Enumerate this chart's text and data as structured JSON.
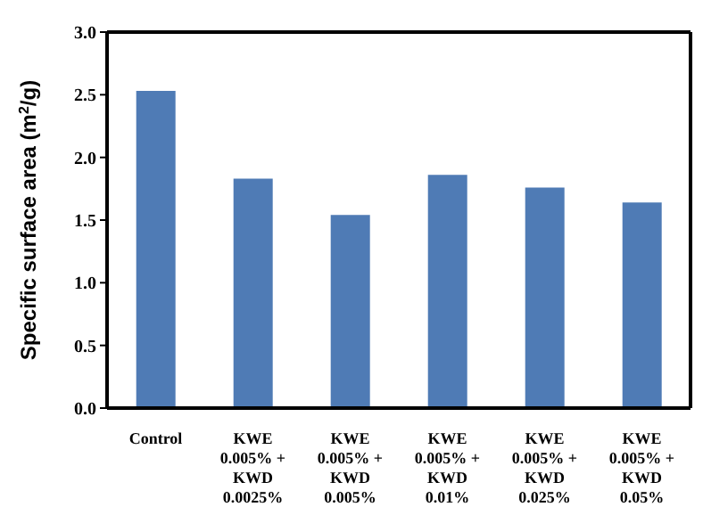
{
  "chart_data": {
    "type": "bar",
    "ylabel": "Specific surface area (m$^{2}$/g)",
    "categories": [
      "Control",
      "KWE\n0.005% +\nKWD\n0.0025%",
      "KWE\n0.005% +\nKWD\n0.005%",
      "KWE\n0.005% +\nKWD\n0.01%",
      "KWE\n0.005% +\nKWD\n0.025%",
      "KWE\n0.005% +\nKWD\n0.05%"
    ],
    "values": [
      2.53,
      1.83,
      1.54,
      1.86,
      1.76,
      1.64
    ],
    "color": "#4f7bb5",
    "ylim": [
      0,
      3
    ],
    "yticks": [
      {
        "value": 0,
        "label": "0.0"
      },
      {
        "value": 0.5,
        "label": "0.5"
      },
      {
        "value": 1,
        "label": "1.0"
      },
      {
        "value": 1.5,
        "label": "1.5"
      },
      {
        "value": 2,
        "label": "2.0"
      },
      {
        "value": 2.5,
        "label": "2.5"
      },
      {
        "value": 3,
        "label": "3.0"
      }
    ],
    "grid": false
  }
}
